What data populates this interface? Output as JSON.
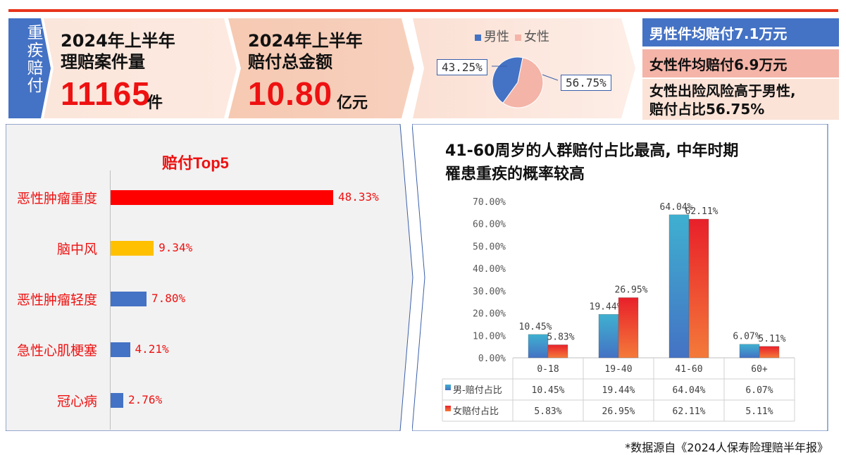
{
  "side_label": "重疾赔付",
  "kpi": [
    {
      "title_line1": "2024年上半年",
      "title_line2": "理赔案件量",
      "value": "11165",
      "unit": "件"
    },
    {
      "title_line1": "2024年上半年",
      "title_line2": "赔付总金额",
      "value": "10.80",
      "unit": "亿元"
    }
  ],
  "gender_pie": {
    "legend": [
      "男性",
      "女性"
    ],
    "male_pct": 43.25,
    "female_pct": 56.75,
    "male_label": "43.25%",
    "female_label": "56.75%",
    "colors": {
      "male": "#4472c4",
      "female": "#f4b4a8"
    }
  },
  "side_facts": {
    "male": "男性件均赔付7.1万元",
    "female": "女性件均赔付6.9万元",
    "note_line1": "女性出险风险高于男性,",
    "note_line2": "赔付占比56.75%"
  },
  "top5_title": "赔付Top5",
  "age_title_line1": "41-60周岁的人群赔付占比最高, 中年时期",
  "age_title_line2": "罹患重疾的概率较高",
  "footnote": "*数据源自《2024人保寿险理赔半年报》",
  "colors": {
    "accent_red": "#ee1111",
    "blue": "#4472c4",
    "yellow": "#ffc000",
    "panel_bg": "#f2f2f2"
  },
  "chart_data": [
    {
      "type": "bar",
      "orientation": "horizontal",
      "title": "赔付Top5",
      "categories": [
        "恶性肿瘤重度",
        "脑中风",
        "恶性肿瘤轻度",
        "急性心肌梗塞",
        "冠心病"
      ],
      "values": [
        48.33,
        9.34,
        7.8,
        4.21,
        2.76
      ],
      "value_labels": [
        "48.33%",
        "9.34%",
        "7.80%",
        "4.21%",
        "2.76%"
      ],
      "bar_colors": [
        "#ff0000",
        "#ffc000",
        "#4472c4",
        "#4472c4",
        "#4472c4"
      ]
    },
    {
      "type": "bar",
      "title": "41-60周岁的人群赔付占比最高, 中年时期罹患重疾的概率较高",
      "categories": [
        "0-18",
        "19-40",
        "41-60",
        "60+"
      ],
      "series": [
        {
          "name": "男-赔付占比",
          "values": [
            10.45,
            19.44,
            64.04,
            6.07
          ],
          "labels": [
            "10.45%",
            "19.44%",
            "64.04%",
            "6.07%"
          ]
        },
        {
          "name": "女赔付占比",
          "values": [
            5.83,
            26.95,
            62.11,
            5.11
          ],
          "labels": [
            "5.83%",
            "26.95%",
            "62.11%",
            "5.11%"
          ]
        }
      ],
      "yticks": [
        "0.00%",
        "10.00%",
        "20.00%",
        "30.00%",
        "40.00%",
        "50.00%",
        "60.00%",
        "70.00%"
      ],
      "ylim": [
        0,
        70
      ],
      "data_table": true
    }
  ]
}
